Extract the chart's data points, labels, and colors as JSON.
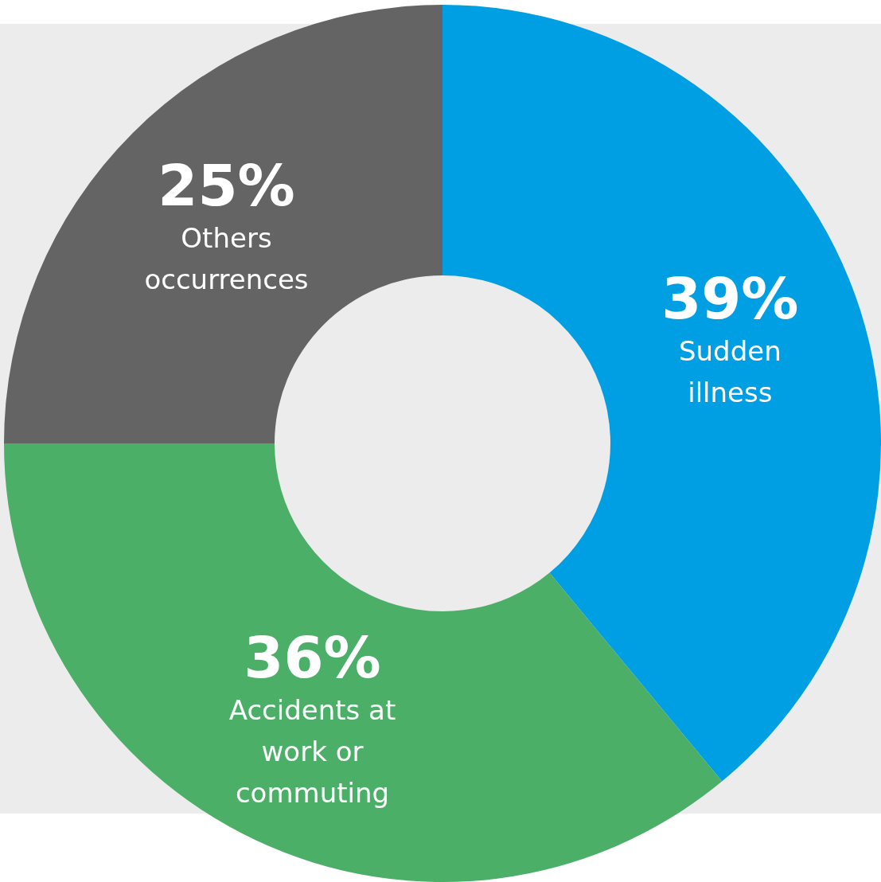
{
  "chart_data": {
    "type": "donut",
    "categories": [
      "Sudden illness",
      "Accidents at work or commuting",
      "Others occurrences"
    ],
    "values": [
      39,
      36,
      25
    ],
    "colors": [
      "#009fe3",
      "#4caf68",
      "#646464"
    ],
    "value_labels": [
      "39%",
      "36%",
      "25%"
    ],
    "legend": false
  }
}
